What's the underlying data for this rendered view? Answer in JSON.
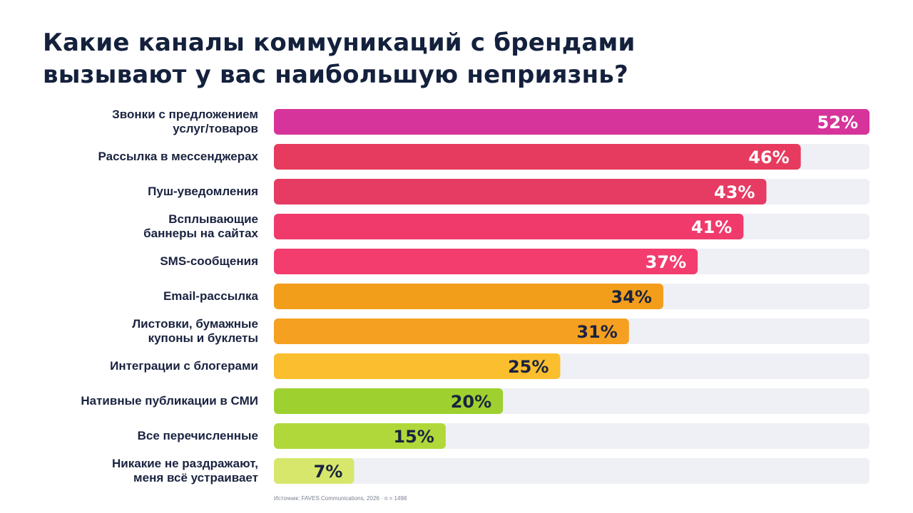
{
  "title": {
    "line1": "Какие каналы коммуникаций с брендами",
    "line2": "вызывают у вас наибольшую неприязнь?"
  },
  "source": "Источник: FAVES Communications, 2026 · n = 1498",
  "chart_data": {
    "type": "bar",
    "orientation": "horizontal",
    "xlim": [
      0,
      52
    ],
    "unit": "%",
    "categories": [
      "Звонки с предложением услуг/товаров",
      "Рассылка в мессенджерах",
      "Пуш-уведомления",
      "Всплывающие баннеры на сайтах",
      "SMS-сообщения",
      "Email-рассылка",
      "Листовки, бумажные купоны и буклеты",
      "Интеграции с блогерами",
      "Нативные публикации в СМИ",
      "Все перечисленные",
      "Никакие не раздражают, меня всё устраивает"
    ],
    "label_lines": [
      [
        "Звонки с предложением",
        "услуг/товаров"
      ],
      [
        "Рассылка в мессенджерах"
      ],
      [
        "Пуш-уведомления"
      ],
      [
        "Всплывающие",
        "баннеры на сайтах"
      ],
      [
        "SMS-сообщения"
      ],
      [
        "Email-рассылка"
      ],
      [
        "Листовки, бумажные",
        "купоны и буклеты"
      ],
      [
        "Интеграции с блогерами"
      ],
      [
        "Нативные публикации в СМИ"
      ],
      [
        "Все перечисленные"
      ],
      [
        "Никакие не раздражают,",
        "меня всё устраивает"
      ]
    ],
    "values": [
      52,
      46,
      43,
      41,
      37,
      34,
      31,
      25,
      20,
      15,
      7
    ],
    "value_labels": [
      "52%",
      "46%",
      "43%",
      "41%",
      "37%",
      "34%",
      "31%",
      "25%",
      "20%",
      "15%",
      "7%"
    ],
    "bar_colors": [
      "#d6349a",
      "#e63b5e",
      "#e63b62",
      "#f03a6c",
      "#f23d6e",
      "#f29e1b",
      "#f5a020",
      "#fbbe2e",
      "#9ed12f",
      "#b0d83a",
      "#d6e76b"
    ],
    "value_label_colors": [
      "#ffffff",
      "#ffffff",
      "#ffffff",
      "#ffffff",
      "#ffffff",
      "#1a2340",
      "#1a2340",
      "#1a2340",
      "#1a2340",
      "#1a2340",
      "#1a2340"
    ],
    "track_color": "#eef0f5"
  }
}
